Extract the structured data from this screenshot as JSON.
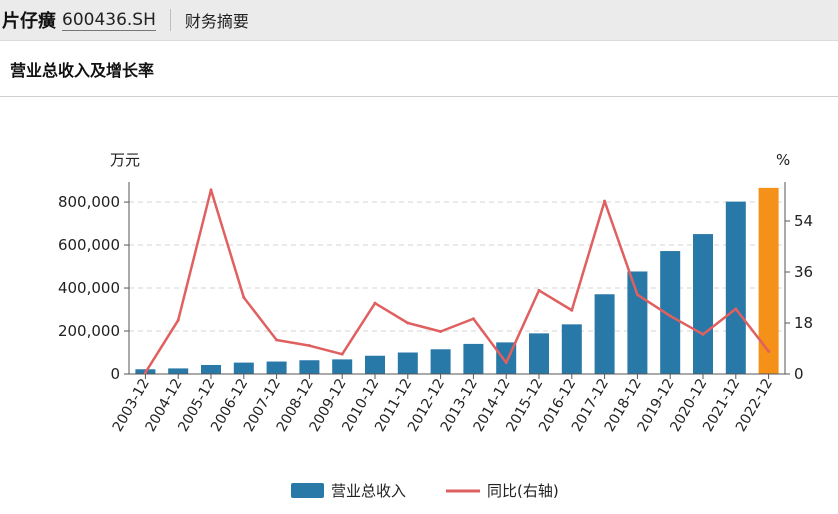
{
  "header": {
    "stock_name": "片仔癀",
    "stock_code": "600436.SH",
    "section": "财务摘要"
  },
  "chart_title": "营业总收入及增长率",
  "colors": {
    "bar": "#2878a8",
    "bar_highlight": "#f59018",
    "line": "#e06060",
    "grid": "#d6d6d6",
    "axis": "#555555"
  },
  "chart_data": {
    "type": "bar",
    "title": "营业总收入及增长率",
    "y_left_unit": "万元",
    "y_right_unit": "%",
    "categories": [
      "2003-12",
      "2004-12",
      "2005-12",
      "2006-12",
      "2007-12",
      "2008-12",
      "2009-12",
      "2010-12",
      "2011-12",
      "2012-12",
      "2013-12",
      "2014-12",
      "2015-12",
      "2016-12",
      "2017-12",
      "2018-12",
      "2019-12",
      "2020-12",
      "2021-12",
      "2022-12"
    ],
    "ylim_left": [
      0,
      870000
    ],
    "yticks_left": [
      0,
      200000,
      400000,
      600000,
      800000
    ],
    "ytick_labels_left": [
      "0",
      "200,000",
      "400,000",
      "600,000",
      "800,000"
    ],
    "ylim_right": [
      0,
      66
    ],
    "yticks_right": [
      0,
      18,
      36,
      54
    ],
    "ytick_labels_right": [
      "0",
      "18",
      "36",
      "54"
    ],
    "grid": true,
    "series": [
      {
        "name": "营业总收入",
        "type": "bar",
        "axis": "left",
        "values": [
          22000,
          26000,
          42000,
          53000,
          58000,
          64000,
          68000,
          85000,
          100000,
          115000,
          140000,
          147000,
          189000,
          231000,
          371000,
          477000,
          572000,
          651000,
          802000,
          866000
        ],
        "highlight_index": 19
      },
      {
        "name": "同比(右轴)",
        "type": "line",
        "axis": "right",
        "values": [
          0.5,
          19,
          65,
          27,
          12,
          10,
          7,
          25,
          18,
          15,
          19.5,
          4,
          29.5,
          22.5,
          61,
          28,
          20.5,
          14,
          23,
          8
        ]
      }
    ],
    "legend_position": "bottom"
  }
}
